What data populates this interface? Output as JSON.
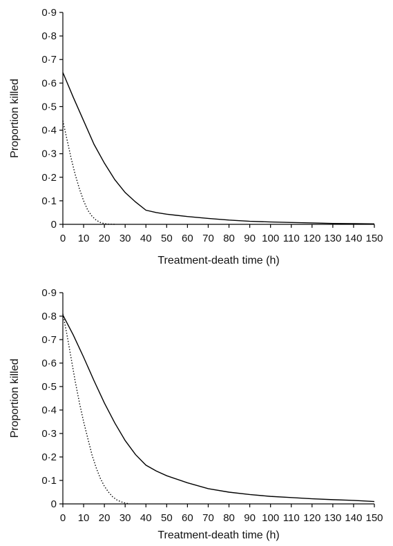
{
  "chart_data": [
    {
      "type": "line",
      "xlabel": "Treatment-death time (h)",
      "ylabel": "Proportion killed",
      "xlim": [
        0,
        150
      ],
      "ylim": [
        0,
        0.9
      ],
      "xticks": [
        "0",
        "10",
        "20",
        "30",
        "40",
        "50",
        "60",
        "70",
        "80",
        "90",
        "100",
        "110",
        "120",
        "130",
        "140",
        "150"
      ],
      "yticks": [
        "0",
        "0·1",
        "0·2",
        "0·3",
        "0·4",
        "0·5",
        "0·6",
        "0·7",
        "0·8",
        "0·9"
      ],
      "grid": false,
      "series": [
        {
          "style": "solid",
          "x": [
            0,
            5,
            10,
            15,
            20,
            25,
            30,
            35,
            40,
            45,
            50,
            60,
            70,
            80,
            90,
            100,
            110,
            120,
            130,
            140,
            150
          ],
          "y": [
            0.645,
            0.54,
            0.44,
            0.34,
            0.26,
            0.19,
            0.135,
            0.095,
            0.06,
            0.05,
            0.043,
            0.033,
            0.025,
            0.018,
            0.013,
            0.01,
            0.008,
            0.006,
            0.004,
            0.003,
            0.002
          ]
        },
        {
          "style": "dotted",
          "x": [
            0,
            2,
            4,
            6,
            8,
            10,
            12,
            14,
            16,
            18,
            20,
            22,
            25
          ],
          "y": [
            0.44,
            0.36,
            0.28,
            0.21,
            0.15,
            0.1,
            0.06,
            0.035,
            0.018,
            0.008,
            0.003,
            0.001,
            0
          ]
        }
      ]
    },
    {
      "type": "line",
      "xlabel": "Treatment-death time (h)",
      "ylabel": "Proportion killed",
      "xlim": [
        0,
        150
      ],
      "ylim": [
        0,
        0.9
      ],
      "xticks": [
        "0",
        "10",
        "20",
        "30",
        "40",
        "50",
        "60",
        "70",
        "80",
        "90",
        "100",
        "110",
        "120",
        "130",
        "140",
        "150"
      ],
      "yticks": [
        "0",
        "0·1",
        "0·2",
        "0·3",
        "0·4",
        "0·5",
        "0·6",
        "0·7",
        "0·8",
        "0·9"
      ],
      "grid": false,
      "series": [
        {
          "style": "solid",
          "x": [
            0,
            5,
            10,
            15,
            20,
            25,
            30,
            35,
            40,
            45,
            50,
            60,
            70,
            80,
            90,
            100,
            110,
            120,
            130,
            140,
            150
          ],
          "y": [
            0.805,
            0.72,
            0.625,
            0.525,
            0.43,
            0.345,
            0.27,
            0.21,
            0.165,
            0.14,
            0.12,
            0.09,
            0.065,
            0.05,
            0.04,
            0.032,
            0.027,
            0.022,
            0.018,
            0.015,
            0.01
          ]
        },
        {
          "style": "dotted",
          "x": [
            0,
            2,
            4,
            6,
            8,
            10,
            12,
            14,
            16,
            18,
            20,
            22,
            24,
            26,
            28,
            30,
            32
          ],
          "y": [
            0.81,
            0.72,
            0.62,
            0.52,
            0.43,
            0.35,
            0.28,
            0.21,
            0.155,
            0.11,
            0.075,
            0.05,
            0.03,
            0.017,
            0.009,
            0.004,
            0
          ]
        }
      ]
    }
  ]
}
